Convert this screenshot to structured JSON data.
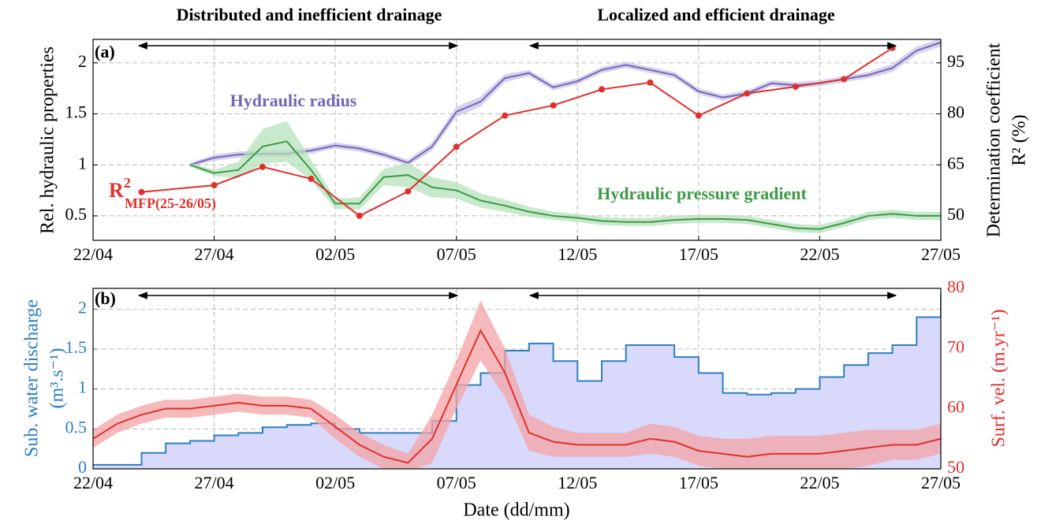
{
  "chart_data": [
    {
      "type": "line",
      "panel_label": "(a)",
      "annotations": [
        "Distributed and inefficient drainage",
        "Localized and efficient drainage",
        "Hydraulic radius",
        "Hydraulic pressure gradient"
      ],
      "r2_label": {
        "base": "R",
        "sup": "2",
        "sub": "MFP(25-26/05)"
      },
      "ylabel": "Rel. hydraulic properties",
      "y2label": [
        "Determination coefficient",
        "R² (%)"
      ],
      "xlim": [
        0,
        35
      ],
      "xticks": [
        {
          "value": 0,
          "label": "22/04"
        },
        {
          "value": 5,
          "label": "27/04"
        },
        {
          "value": 10,
          "label": "02/05"
        },
        {
          "value": 15,
          "label": "07/05"
        },
        {
          "value": 20,
          "label": "12/05"
        },
        {
          "value": 25,
          "label": "17/05"
        },
        {
          "value": 30,
          "label": "22/05"
        },
        {
          "value": 35,
          "label": "27/05"
        }
      ],
      "ylim": [
        0.26,
        2.23
      ],
      "yticks": [
        0.5,
        1,
        1.5,
        2
      ],
      "y2lim": [
        42.8,
        101.9
      ],
      "y2ticks": [
        50,
        65,
        80,
        95
      ],
      "grid": true,
      "series": [
        {
          "name": "Hydraulic radius",
          "color": "#7566b4",
          "band_color": "#cbc3ea",
          "x": [
            4,
            5,
            6,
            7,
            8,
            9,
            10,
            11,
            12,
            13,
            14,
            15,
            16,
            17,
            18,
            19,
            20,
            21,
            22,
            23,
            24,
            25,
            26,
            27,
            28,
            29,
            30,
            31,
            32,
            33,
            34,
            35
          ],
          "values": [
            1.0,
            1.07,
            1.1,
            1.11,
            1.11,
            1.14,
            1.19,
            1.16,
            1.1,
            1.02,
            1.18,
            1.52,
            1.62,
            1.85,
            1.9,
            1.76,
            1.82,
            1.93,
            1.98,
            1.93,
            1.88,
            1.72,
            1.66,
            1.7,
            1.8,
            1.78,
            1.8,
            1.84,
            1.88,
            1.95,
            2.12,
            2.2
          ],
          "spread": [
            0.02,
            0.03,
            0.03,
            0.03,
            0.03,
            0.03,
            0.03,
            0.03,
            0.03,
            0.03,
            0.04,
            0.05,
            0.05,
            0.04,
            0.03,
            0.03,
            0.03,
            0.03,
            0.03,
            0.03,
            0.03,
            0.03,
            0.03,
            0.03,
            0.03,
            0.03,
            0.03,
            0.03,
            0.03,
            0.04,
            0.04,
            0.04
          ]
        },
        {
          "name": "Hydraulic pressure gradient",
          "color": "#3c9a46",
          "band_color": "#b6e2ba",
          "x": [
            4,
            5,
            6,
            7,
            8,
            9,
            10,
            11,
            12,
            13,
            14,
            15,
            16,
            17,
            18,
            19,
            20,
            21,
            22,
            23,
            24,
            25,
            26,
            27,
            28,
            29,
            30,
            31,
            32,
            33,
            34,
            35
          ],
          "values": [
            1.0,
            0.92,
            0.95,
            1.18,
            1.23,
            0.95,
            0.62,
            0.62,
            0.88,
            0.9,
            0.78,
            0.75,
            0.65,
            0.6,
            0.54,
            0.5,
            0.48,
            0.45,
            0.44,
            0.44,
            0.46,
            0.47,
            0.47,
            0.46,
            0.42,
            0.38,
            0.37,
            0.43,
            0.5,
            0.52,
            0.5,
            0.5
          ],
          "spread": [
            0.02,
            0.03,
            0.08,
            0.17,
            0.2,
            0.1,
            0.05,
            0.06,
            0.08,
            0.12,
            0.1,
            0.08,
            0.07,
            0.06,
            0.05,
            0.04,
            0.04,
            0.04,
            0.04,
            0.04,
            0.04,
            0.04,
            0.04,
            0.04,
            0.04,
            0.04,
            0.04,
            0.04,
            0.04,
            0.04,
            0.04,
            0.04
          ]
        },
        {
          "axis": "y2",
          "color": "#e0302c",
          "markers": true,
          "x": [
            2,
            5,
            7,
            9,
            11,
            13,
            15,
            17,
            19,
            21,
            23,
            25,
            27,
            29,
            31,
            33
          ],
          "values": [
            57,
            59,
            64.4,
            60.9,
            50,
            57.2,
            70.3,
            79.5,
            82.5,
            87.2,
            89.2,
            79.5,
            86,
            88,
            90.2,
            99.4
          ]
        }
      ]
    },
    {
      "type": "line",
      "panel_label": "(b)",
      "xlabel": "Date (dd/mm)",
      "ylabel": [
        "Sub. water discharge",
        "(m³.s⁻¹)"
      ],
      "y2label": "Surf. vel. (m.yr⁻¹)",
      "xlim": [
        0,
        35
      ],
      "xticks": [
        {
          "value": 0,
          "label": "22/04"
        },
        {
          "value": 5,
          "label": "27/04"
        },
        {
          "value": 10,
          "label": "02/05"
        },
        {
          "value": 15,
          "label": "07/05"
        },
        {
          "value": 20,
          "label": "12/05"
        },
        {
          "value": 25,
          "label": "17/05"
        },
        {
          "value": 30,
          "label": "22/05"
        },
        {
          "value": 35,
          "label": "27/05"
        }
      ],
      "ylim": [
        0,
        2.26
      ],
      "yticks": [
        0,
        0.5,
        1,
        1.5,
        2
      ],
      "ytick_color": "#2d7fc0",
      "y2lim": [
        50,
        80
      ],
      "y2ticks": [
        50,
        60,
        70,
        80
      ],
      "y2tick_color": "#e0302c",
      "grid": true,
      "series": [
        {
          "color": "#2d7fc0",
          "fill": "#d9d9fb",
          "step": true,
          "x": [
            0,
            1,
            2,
            3,
            4,
            5,
            6,
            7,
            8,
            9,
            10,
            11,
            12,
            13,
            14,
            15,
            16,
            17,
            18,
            19,
            20,
            21,
            22,
            23,
            24,
            25,
            26,
            27,
            28,
            29,
            30,
            31,
            32,
            33,
            34,
            35
          ],
          "values": [
            0.05,
            0.05,
            0.2,
            0.32,
            0.35,
            0.42,
            0.45,
            0.52,
            0.55,
            0.57,
            0.5,
            0.45,
            0.45,
            0.45,
            0.6,
            1.05,
            1.2,
            1.48,
            1.57,
            1.35,
            1.1,
            1.35,
            1.55,
            1.55,
            1.4,
            1.2,
            0.95,
            0.93,
            0.95,
            1.0,
            1.15,
            1.3,
            1.45,
            1.55,
            1.9,
            2.2
          ]
        },
        {
          "axis": "y2",
          "color": "#e0302c",
          "band_color": "#f3a3a6",
          "x": [
            0,
            1,
            2,
            3,
            4,
            5,
            6,
            7,
            8,
            9,
            10,
            11,
            12,
            13,
            14,
            15,
            16,
            17,
            18,
            19,
            20,
            21,
            22,
            23,
            24,
            25,
            26,
            27,
            28,
            29,
            30,
            31,
            32,
            33,
            34,
            35
          ],
          "values": [
            55,
            57.5,
            59,
            60,
            60,
            60.5,
            61,
            60.5,
            60.5,
            60,
            57,
            54,
            52,
            51,
            55,
            64,
            73,
            66,
            56,
            54.5,
            54,
            54,
            54,
            55,
            54.5,
            53,
            52.5,
            52,
            52.5,
            52.5,
            52.5,
            53,
            53.5,
            54,
            54,
            55
          ],
          "spread": [
            1.5,
            1.5,
            1.5,
            1.5,
            1.5,
            1.5,
            1.5,
            1.5,
            1.5,
            1.5,
            2,
            2,
            2,
            1.5,
            4,
            4,
            5,
            4,
            3,
            2.5,
            2,
            2,
            2,
            2.5,
            2.5,
            2.5,
            2.5,
            3,
            3,
            3,
            3,
            3,
            3,
            2.5,
            2.5,
            2.5
          ]
        }
      ]
    }
  ]
}
